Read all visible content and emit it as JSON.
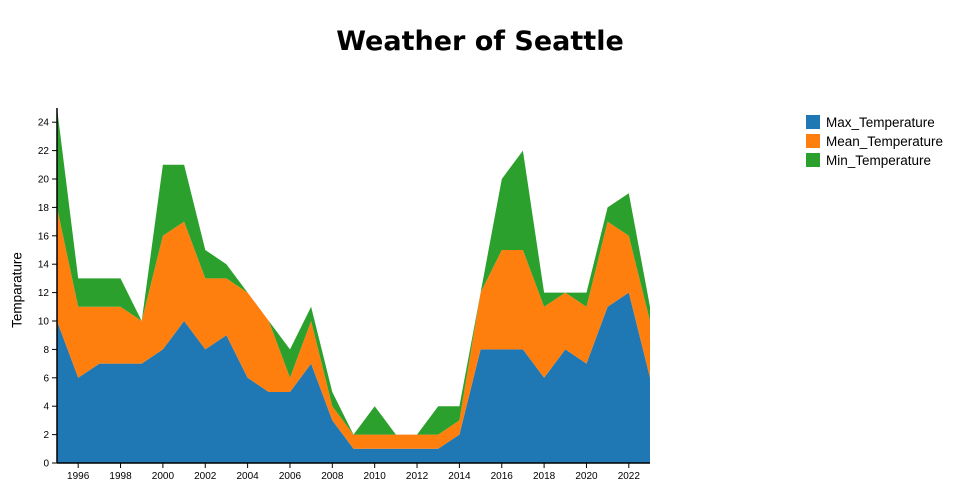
{
  "title": "Weather of Seattle",
  "chart_data": {
    "type": "area",
    "stacked": true,
    "title": "Weather of Seattle",
    "xlabel": "",
    "ylabel": "Temparature",
    "x": [
      1995,
      1996,
      1997,
      1998,
      1999,
      2000,
      2001,
      2002,
      2003,
      2004,
      2005,
      2006,
      2007,
      2008,
      2009,
      2010,
      2011,
      2012,
      2013,
      2014,
      2015,
      2016,
      2017,
      2018,
      2019,
      2020,
      2021,
      2022,
      2023
    ],
    "series": [
      {
        "name": "Max_Temperature",
        "color": "#1f77b4",
        "values": [
          10,
          6,
          7,
          7,
          7,
          8,
          10,
          8,
          9,
          6,
          5,
          5,
          7,
          3,
          1,
          1,
          1,
          1,
          1,
          2,
          8,
          8,
          8,
          6,
          8,
          7,
          11,
          12,
          6
        ]
      },
      {
        "name": "Mean_Temperature",
        "color": "#ff7f0e",
        "values": [
          8,
          5,
          4,
          4,
          3,
          8,
          7,
          5,
          4,
          6,
          5,
          1,
          3,
          1,
          1,
          1,
          1,
          1,
          1,
          1,
          4,
          7,
          7,
          5,
          4,
          4,
          6,
          4,
          4
        ]
      },
      {
        "name": "Min_Temperature",
        "color": "#2ca02c",
        "values": [
          7,
          2,
          2,
          2,
          0,
          5,
          4,
          2,
          1,
          0,
          0,
          2,
          1,
          1,
          0,
          2,
          0,
          0,
          2,
          1,
          0,
          5,
          7,
          1,
          0,
          1,
          1,
          3,
          1
        ]
      }
    ],
    "x_ticks": [
      1996,
      1998,
      2000,
      2002,
      2004,
      2006,
      2008,
      2010,
      2012,
      2014,
      2016,
      2018,
      2020,
      2022
    ],
    "y_ticks": [
      0,
      2,
      4,
      6,
      8,
      10,
      12,
      14,
      16,
      18,
      20,
      22,
      24
    ],
    "ylim": [
      0,
      25
    ],
    "grid": false,
    "legend_position": "top-right",
    "axis_color": "#000000"
  }
}
